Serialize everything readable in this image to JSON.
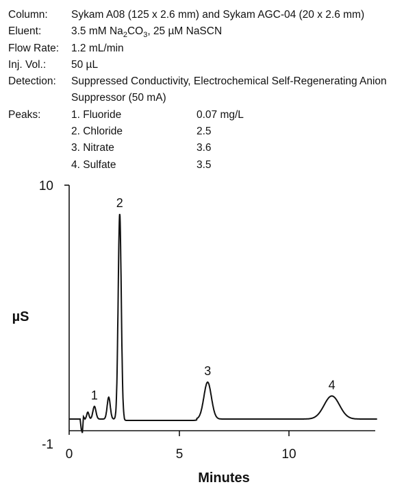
{
  "conditions": {
    "column_label": "Column:",
    "column_value": "Sykam A08 (125 x 2.6 mm) and Sykam AGC-04 (20 x 2.6 mm)",
    "eluent_label": "Eluent:",
    "eluent_pre": "3.5 mM Na",
    "eluent_sub1": "2",
    "eluent_mid": "CO",
    "eluent_sub2": "3",
    "eluent_post": ", 25 µM NaSCN",
    "flow_label": "Flow Rate:",
    "flow_value": "1.2 mL/min",
    "inj_label": "Inj. Vol.:",
    "inj_value": "50 µL",
    "detection_label": "Detection:",
    "detection_value": "Suppressed Conductivity, Electrochemical Self-Regenerating Anion",
    "detection_value_cont": "Suppressor (50 mA)",
    "peaks_label": "Peaks:",
    "peaks": [
      {
        "name": "1. Fluoride",
        "conc": "0.07 mg/L"
      },
      {
        "name": "2. Chloride",
        "conc": "2.5"
      },
      {
        "name": "3. Nitrate",
        "conc": "3.6"
      },
      {
        "name": "4. Sulfate",
        "conc": "3.5"
      }
    ]
  },
  "chart_data": {
    "type": "line",
    "xlabel": "Minutes",
    "ylabel": "µS",
    "xlim": [
      0,
      14
    ],
    "ylim": [
      -1,
      10
    ],
    "x_ticks": [
      0,
      5,
      10
    ],
    "y_tick_labels": [
      "10",
      "-1"
    ],
    "baseline": 0,
    "peaks": [
      {
        "label": "1",
        "x": 1.15,
        "height": 0.55
      },
      {
        "label": "2",
        "x": 2.3,
        "height": 8.9
      },
      {
        "label": "3",
        "x": 6.3,
        "height": 1.6
      },
      {
        "label": "4",
        "x": 11.95,
        "height": 1.0
      }
    ]
  }
}
